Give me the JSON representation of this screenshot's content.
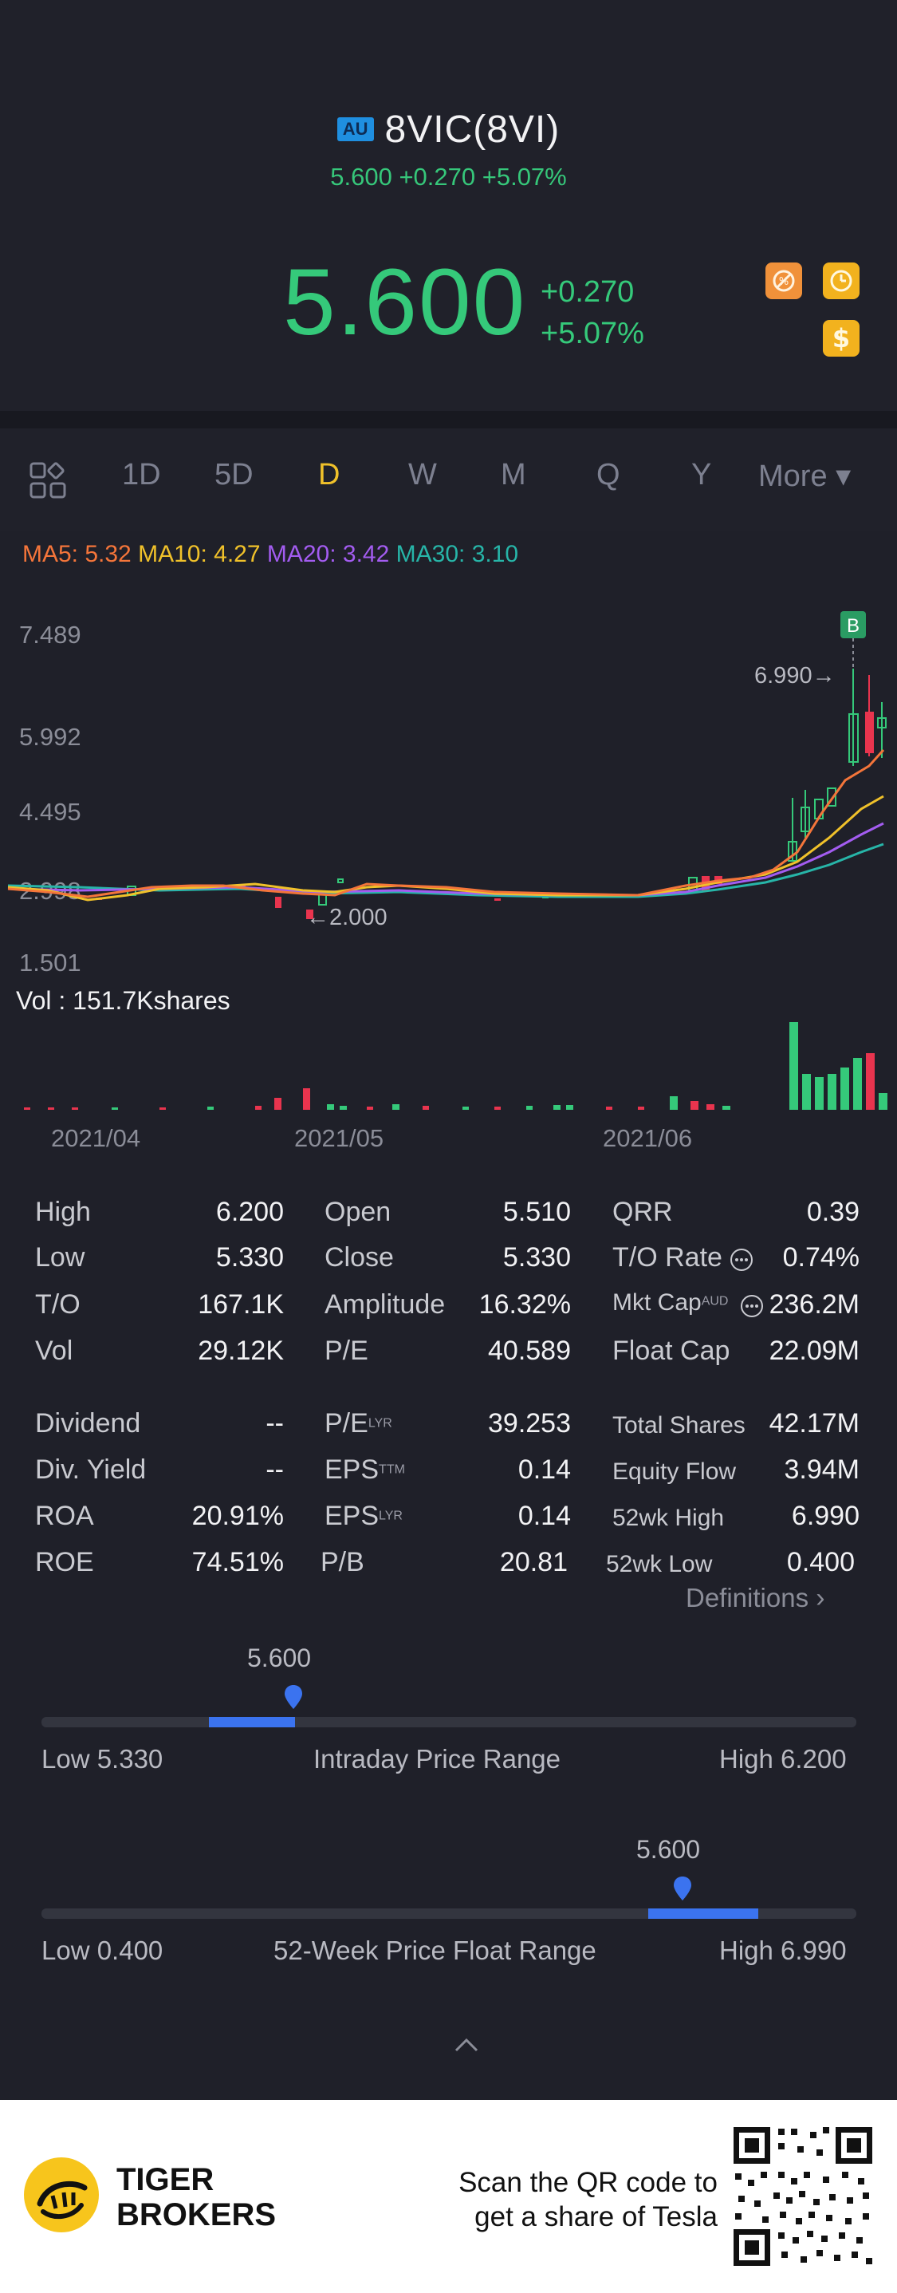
{
  "header": {
    "market_badge": "AU",
    "ticker": "8VIC(8VI)",
    "subtitle": "5.600 +0.270 +5.07%",
    "price": "5.600",
    "change": "+0.270",
    "change_pct": "+5.07%",
    "colors": {
      "up": "#35c97a",
      "down": "#e8344e"
    }
  },
  "tabs": [
    {
      "label": "1D"
    },
    {
      "label": "5D"
    },
    {
      "label": "D",
      "active": true
    },
    {
      "label": "W"
    },
    {
      "label": "M"
    },
    {
      "label": "Q"
    },
    {
      "label": "Y"
    },
    {
      "label": "More ▾"
    }
  ],
  "ma": {
    "ma5": "MA5: 5.32",
    "ma10": "MA10: 4.27",
    "ma20": "MA20: 3.42",
    "ma30": "MA30: 3.10",
    "colors": {
      "ma5": "#f4753a",
      "ma10": "#f0c12a",
      "ma20": "#a35cf0",
      "ma30": "#27b5a8"
    }
  },
  "chart": {
    "y_labels": [
      "7.489",
      "5.992",
      "4.495",
      "2.998",
      "1.501"
    ],
    "marker_high": "6.990→",
    "marker_low": "←2.000",
    "b_marker": "B",
    "volume_label": "Vol  : 151.7Kshares",
    "x_labels": [
      "2021/04",
      "2021/05",
      "2021/06"
    ]
  },
  "chart_data": {
    "type": "candlestick",
    "ylim": [
      1.501,
      7.489
    ],
    "y_ticks": [
      7.489,
      5.992,
      4.495,
      2.998,
      1.501
    ],
    "x_ticks": [
      "2021/04",
      "2021/05",
      "2021/06"
    ],
    "period_high": 6.99,
    "period_low": 2.0,
    "ma_latest": {
      "MA5": 5.32,
      "MA10": 4.27,
      "MA20": 3.42,
      "MA30": 3.1
    },
    "volume_latest": "151.7Kshares"
  },
  "stats": {
    "col1": [
      {
        "label": "High",
        "value": "6.200"
      },
      {
        "label": "Low",
        "value": "5.330"
      },
      {
        "label": "T/O",
        "value": "167.1K"
      },
      {
        "label": "Vol",
        "value": "29.12K"
      }
    ],
    "col2": [
      {
        "label": "Open",
        "value": "5.510"
      },
      {
        "label": "Close",
        "value": "5.330"
      },
      {
        "label": "Amplitude",
        "value": "16.32%"
      },
      {
        "label": "P/E",
        "value": "40.589"
      }
    ],
    "col3": [
      {
        "label": "QRR",
        "value": "0.39"
      },
      {
        "label": "T/O Rate",
        "value": "0.74%"
      },
      {
        "label": "Mkt Cap",
        "sup": "AUD",
        "value": "236.2M"
      },
      {
        "label": "Float Cap",
        "value": "22.09M"
      }
    ],
    "col1b": [
      {
        "label": "Dividend",
        "value": "--"
      },
      {
        "label": "Div. Yield",
        "value": "--"
      },
      {
        "label": "ROA",
        "value": "20.91%"
      },
      {
        "label": "ROE",
        "value": "74.51%"
      }
    ],
    "col2b": [
      {
        "label": "P/E",
        "sup": "LYR",
        "value": "39.253"
      },
      {
        "label": "EPS",
        "sup": "TTM",
        "value": "0.14"
      },
      {
        "label": "EPS",
        "sup": "LYR",
        "value": "0.14"
      },
      {
        "label": "P/B",
        "value": "20.81"
      }
    ],
    "col3b": [
      {
        "label": "Total Shares",
        "value": "42.17M"
      },
      {
        "label": "Equity Flow",
        "value": "3.94M"
      },
      {
        "label": "52wk High",
        "value": "6.990"
      },
      {
        "label": "52wk Low",
        "value": "0.400"
      }
    ],
    "definitions": "Definitions"
  },
  "intraday": {
    "marker": "5.600",
    "low": "Low 5.330",
    "title": "Intraday Price Range",
    "high": "High 6.200",
    "fill_start": 0.208,
    "fill_end": 0.31,
    "marker_pos": 0.31
  },
  "week52": {
    "marker": "5.600",
    "low": "Low 0.400",
    "title": "52-Week Price Float Range",
    "high": "High 6.990",
    "fill_start": 0.745,
    "fill_end": 0.882,
    "marker_pos": 0.788
  },
  "footer": {
    "brand_line1": "TIGER",
    "brand_line2": "BROKERS",
    "promo_line1": "Scan the QR code to",
    "promo_line2": "get a share of Tesla"
  }
}
